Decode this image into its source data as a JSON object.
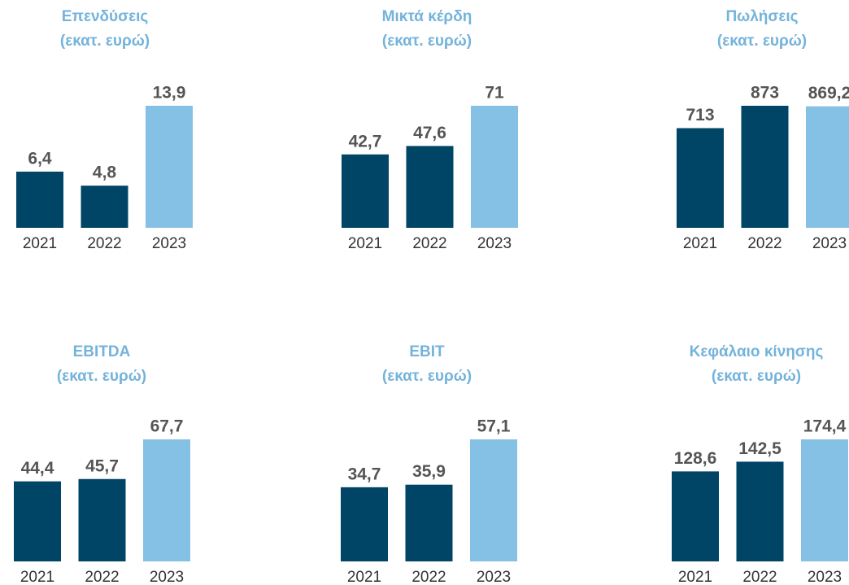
{
  "chart_data": [
    {
      "type": "bar",
      "title": "Επενδύσεις",
      "subtitle": "(εκατ. ευρώ)",
      "categories": [
        "2021",
        "2022",
        "2023"
      ],
      "values": [
        6.4,
        4.8,
        13.9
      ],
      "value_labels": [
        "6,4",
        "4,8",
        "13,9"
      ],
      "colors": [
        "#004466",
        "#004466",
        "#85c1e5"
      ]
    },
    {
      "type": "bar",
      "title": "Μικτά κέρδη",
      "subtitle": "(εκατ. ευρώ)",
      "categories": [
        "2021",
        "2022",
        "2023"
      ],
      "values": [
        42.7,
        47.6,
        71
      ],
      "value_labels": [
        "42,7",
        "47,6",
        "71"
      ],
      "colors": [
        "#004466",
        "#004466",
        "#85c1e5"
      ]
    },
    {
      "type": "bar",
      "title": "Πωλήσεις",
      "subtitle": "(εκατ. ευρώ)",
      "categories": [
        "2021",
        "2022",
        "2023"
      ],
      "values": [
        713,
        873,
        869.2
      ],
      "value_labels": [
        "713",
        "873",
        "869,2"
      ],
      "colors": [
        "#004466",
        "#004466",
        "#85c1e5"
      ]
    },
    {
      "type": "bar",
      "title": "EBITDA",
      "subtitle": "(εκατ. ευρώ)",
      "categories": [
        "2021",
        "2022",
        "2023"
      ],
      "values": [
        44.4,
        45.7,
        67.7
      ],
      "value_labels": [
        "44,4",
        "45,7",
        "67,7"
      ],
      "colors": [
        "#004466",
        "#004466",
        "#85c1e5"
      ]
    },
    {
      "type": "bar",
      "title": "EBIT",
      "subtitle": "(εκατ. ευρώ)",
      "categories": [
        "2021",
        "2022",
        "2023"
      ],
      "values": [
        34.7,
        35.9,
        57.1
      ],
      "value_labels": [
        "34,7",
        "35,9",
        "57,1"
      ],
      "colors": [
        "#004466",
        "#004466",
        "#85c1e5"
      ]
    },
    {
      "type": "bar",
      "title": "Κεφάλαιο κίνησης",
      "subtitle": "(εκατ. ευρώ)",
      "categories": [
        "2021",
        "2022",
        "2023"
      ],
      "values": [
        128.6,
        142.5,
        174.4
      ],
      "value_labels": [
        "128,6",
        "142,5",
        "174,4"
      ],
      "colors": [
        "#004466",
        "#004466",
        "#85c1e5"
      ]
    }
  ]
}
